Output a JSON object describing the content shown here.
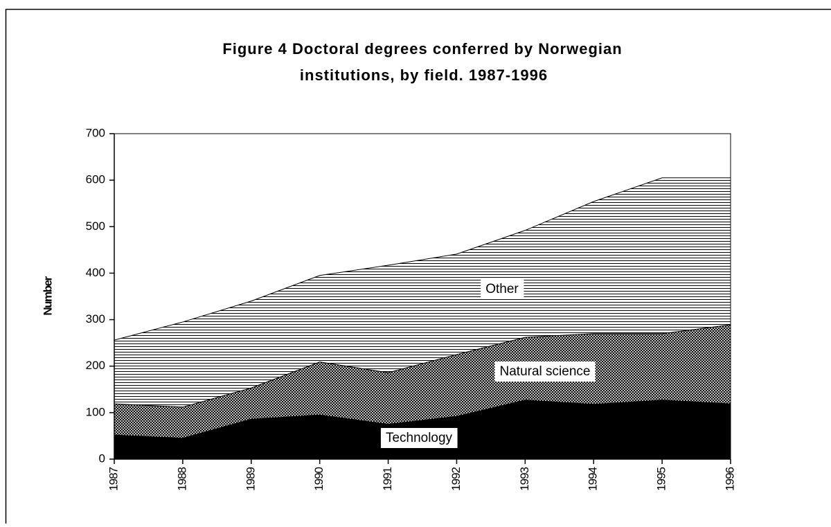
{
  "chart_data": {
    "type": "stacked_area",
    "title": [
      "Figure 4    Doctoral degrees conferred by Norwegian",
      "institutions, by field. 1987-1996"
    ],
    "y_label": "Number",
    "categories": [
      "1987",
      "1988",
      "1989",
      "1990",
      "1991",
      "1992",
      "1993",
      "1994",
      "1995",
      "1996"
    ],
    "series": [
      {
        "name": "Technology",
        "color": "#000000",
        "pattern": "solid",
        "values": [
          52,
          45,
          86,
          95,
          75,
          92,
          127,
          118,
          127,
          119
        ]
      },
      {
        "name": "Natural science",
        "color": "#000000",
        "pattern": "crosshatch",
        "values": [
          67,
          67,
          67,
          114,
          111,
          133,
          135,
          152,
          143,
          170
        ]
      },
      {
        "name": "Other",
        "color": "#000000",
        "pattern": "horizontal-lines",
        "values": [
          137,
          183,
          187,
          186,
          231,
          216,
          230,
          284,
          335,
          316
        ]
      }
    ],
    "ylim": [
      0,
      700
    ],
    "yticks": [
      0,
      100,
      200,
      300,
      400,
      500,
      600,
      700
    ]
  }
}
